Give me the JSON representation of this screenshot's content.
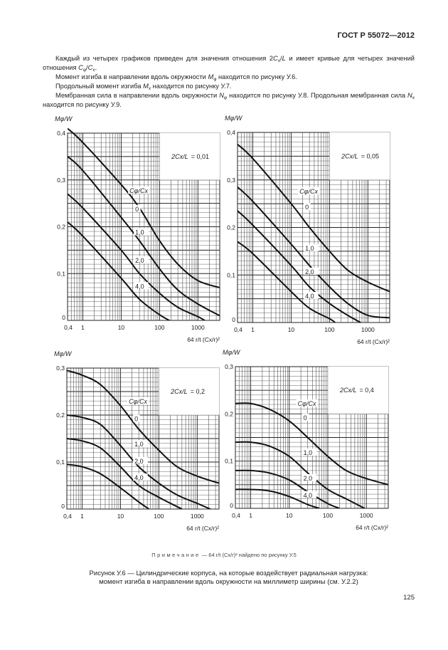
{
  "header": {
    "doc_id": "ГОСТ Р 55072—2012"
  },
  "paragraphs": {
    "p1": {
      "a": "Каждый из четырех графиков приведен для значения отношения 2",
      "b": "C",
      "b_sub": "x",
      "c": "/",
      "d": "L",
      "e": " и имеет кривые для четырех значений отношения ",
      "f": "C",
      "f_sub": "φ",
      "g": "/",
      "h": "C",
      "h_sub": "x",
      "i": "."
    },
    "p2": {
      "a": "Момент изгиба в направлении вдоль окружности ",
      "b": "M",
      "b_sub": "φ",
      "c": " находится по рисунку У.6."
    },
    "p3": {
      "a": "Продольный момент изгиба ",
      "b": "M",
      "b_sub": "x",
      "c": " находится по рисунку У.7."
    },
    "p4": {
      "a": "Мембранная сила в направлении вдоль окружности ",
      "b": "N",
      "b_sub": "φ",
      "c": " находится по рисунку У.8. Продольная мембранная сила ",
      "d": "N",
      "d_sub": "x",
      "e": " находится по рисунку У.9."
    }
  },
  "note": {
    "label": "Примечание",
    "dash": " — ",
    "formula": "64 r/t (Cx/r)²",
    "text": " найдено по рисунку У.5"
  },
  "caption": {
    "line1": "Рисунок У.6 — Цилиндрические корпуса, на которые воздействует радиальная нагрузка:",
    "line2": "момент изгиба в направлении вдоль окружности на миллиметр ширины (см. У.2.2)"
  },
  "page_number": "125",
  "chart_data": [
    {
      "type": "line",
      "param_label": "2Cx/L",
      "param_value": "= 0,01",
      "ylabel": "Mφ/W",
      "xlabel": "64 r/t (Cx/r)²",
      "xscale": "log",
      "xlim": [
        0.4,
        3700
      ],
      "ylim": [
        0,
        0.4
      ],
      "yticks": [
        0,
        0.1,
        0.2,
        0.3,
        0.4
      ],
      "ytick_labels": [
        "0",
        "0,1",
        "0,2",
        "0,3",
        "0,4"
      ],
      "xticks": [
        0.4,
        1,
        10,
        100,
        1000
      ],
      "xtick_labels": [
        "0,4",
        "1",
        "10",
        "100",
        "1000"
      ],
      "legend_title": "Cφ/Cx",
      "box_bottom": 0.3,
      "series": [
        {
          "name": "0",
          "points": [
            [
              0.4,
              0.41
            ],
            [
              1,
              0.38
            ],
            [
              10,
              0.29
            ],
            [
              30,
              0.24
            ],
            [
              100,
              0.17
            ],
            [
              300,
              0.12
            ],
            [
              1000,
              0.085
            ],
            [
              3700,
              0.07
            ]
          ]
        },
        {
          "name": "1,0",
          "points": [
            [
              0.4,
              0.35
            ],
            [
              1,
              0.32
            ],
            [
              10,
              0.22
            ],
            [
              30,
              0.17
            ],
            [
              100,
              0.11
            ],
            [
              300,
              0.065
            ],
            [
              1000,
              0.035
            ],
            [
              3700,
              0.01
            ]
          ]
        },
        {
          "name": "2,0",
          "points": [
            [
              0.4,
              0.27
            ],
            [
              1,
              0.24
            ],
            [
              10,
              0.15
            ],
            [
              30,
              0.1
            ],
            [
              100,
              0.058
            ],
            [
              300,
              0.028
            ],
            [
              1000,
              0.008
            ],
            [
              1500,
              0
            ]
          ]
        },
        {
          "name": "4,0",
          "points": [
            [
              0.4,
              0.21
            ],
            [
              1,
              0.18
            ],
            [
              10,
              0.09
            ],
            [
              30,
              0.045
            ],
            [
              100,
              0.012
            ],
            [
              180,
              0
            ]
          ]
        }
      ]
    },
    {
      "type": "line",
      "param_label": "2Cx/L",
      "param_value": "= 0,05",
      "ylabel": "Mφ/W",
      "xlabel": "64 r/t (Cx/r)²",
      "xscale": "log",
      "xlim": [
        0.4,
        3700
      ],
      "ylim": [
        0,
        0.4
      ],
      "yticks": [
        0,
        0.1,
        0.2,
        0.3,
        0.4
      ],
      "ytick_labels": [
        "0",
        "0,1",
        "0,2",
        "0,3",
        "0,4"
      ],
      "xticks": [
        0.4,
        1,
        10,
        100,
        1000
      ],
      "xtick_labels": [
        "0,4",
        "1",
        "10",
        "100",
        "1000"
      ],
      "legend_title": "Cφ/Cx",
      "box_bottom": 0.3,
      "series": [
        {
          "name": "0",
          "points": [
            [
              0.4,
              0.375
            ],
            [
              1,
              0.345
            ],
            [
              10,
              0.25
            ],
            [
              30,
              0.2
            ],
            [
              100,
              0.15
            ],
            [
              300,
              0.11
            ],
            [
              1000,
              0.085
            ],
            [
              3700,
              0.065
            ]
          ]
        },
        {
          "name": "1,0",
          "points": [
            [
              0.4,
              0.285
            ],
            [
              1,
              0.255
            ],
            [
              10,
              0.165
            ],
            [
              30,
              0.12
            ],
            [
              100,
              0.075
            ],
            [
              300,
              0.04
            ],
            [
              1000,
              0.015
            ],
            [
              3700,
              0.01
            ]
          ]
        },
        {
          "name": "2,0",
          "points": [
            [
              0.4,
              0.235
            ],
            [
              1,
              0.205
            ],
            [
              10,
              0.12
            ],
            [
              30,
              0.075
            ],
            [
              100,
              0.04
            ],
            [
              300,
              0.015
            ],
            [
              650,
              0
            ]
          ]
        },
        {
          "name": "4,0",
          "points": [
            [
              0.4,
              0.17
            ],
            [
              1,
              0.145
            ],
            [
              10,
              0.065
            ],
            [
              30,
              0.03
            ],
            [
              100,
              0.008
            ],
            [
              140,
              0
            ]
          ]
        }
      ]
    },
    {
      "type": "line",
      "param_label": "2Cx/L",
      "param_value": "= 0,2",
      "ylabel": "Mφ/W",
      "xlabel": "64 r/t (Cx/r)²",
      "xscale": "log",
      "xlim": [
        0.4,
        3700
      ],
      "ylim": [
        0,
        0.3
      ],
      "yticks": [
        0,
        0.1,
        0.2,
        0.3
      ],
      "ytick_labels": [
        "0",
        "0,1",
        "0,2",
        "0,3"
      ],
      "xticks": [
        0.4,
        1,
        10,
        100,
        1000
      ],
      "xtick_labels": [
        "0,4",
        "1",
        "10",
        "100",
        "1000"
      ],
      "legend_title": "Cφ/Cx",
      "box_bottom": 0.2,
      "series": [
        {
          "name": "0",
          "points": [
            [
              0.4,
              0.295
            ],
            [
              1,
              0.285
            ],
            [
              3,
              0.265
            ],
            [
              10,
              0.22
            ],
            [
              30,
              0.17
            ],
            [
              100,
              0.125
            ],
            [
              300,
              0.09
            ],
            [
              1000,
              0.07
            ],
            [
              3700,
              0.055
            ]
          ]
        },
        {
          "name": "1,0",
          "points": [
            [
              0.4,
              0.2
            ],
            [
              1,
              0.195
            ],
            [
              3,
              0.18
            ],
            [
              10,
              0.135
            ],
            [
              30,
              0.09
            ],
            [
              100,
              0.055
            ],
            [
              300,
              0.03
            ],
            [
              1000,
              0.012
            ],
            [
              2200,
              0
            ]
          ]
        },
        {
          "name": "2,0",
          "points": [
            [
              0.4,
              0.15
            ],
            [
              1,
              0.145
            ],
            [
              3,
              0.13
            ],
            [
              10,
              0.09
            ],
            [
              30,
              0.05
            ],
            [
              100,
              0.025
            ],
            [
              300,
              0.005
            ],
            [
              400,
              0
            ]
          ]
        },
        {
          "name": "4,0",
          "points": [
            [
              0.4,
              0.095
            ],
            [
              1,
              0.09
            ],
            [
              3,
              0.075
            ],
            [
              10,
              0.045
            ],
            [
              30,
              0.015
            ],
            [
              55,
              0
            ]
          ]
        }
      ]
    },
    {
      "type": "line",
      "param_label": "2Cx/L",
      "param_value": "= 0,4",
      "ylabel": "Mφ/W",
      "xlabel": "64 r/t (Cx/r)²",
      "xscale": "log",
      "xlim": [
        0.4,
        3700
      ],
      "ylim": [
        0,
        0.3
      ],
      "yticks": [
        0,
        0.1,
        0.2,
        0.3
      ],
      "ytick_labels": [
        "0",
        "0,1",
        "0,2",
        "0,3"
      ],
      "xticks": [
        0.4,
        1,
        10,
        100,
        1000
      ],
      "xtick_labels": [
        "0,4",
        "1",
        "10",
        "100",
        "1000"
      ],
      "legend_title": "Cφ/Cx",
      "box_bottom": 0.2,
      "series": [
        {
          "name": "0",
          "points": [
            [
              0.4,
              0.222
            ],
            [
              1,
              0.222
            ],
            [
              3,
              0.21
            ],
            [
              10,
              0.185
            ],
            [
              30,
              0.15
            ],
            [
              100,
              0.11
            ],
            [
              300,
              0.08
            ],
            [
              1000,
              0.063
            ],
            [
              3700,
              0.05
            ]
          ]
        },
        {
          "name": "1,0",
          "points": [
            [
              0.4,
              0.14
            ],
            [
              1,
              0.14
            ],
            [
              3,
              0.132
            ],
            [
              10,
              0.11
            ],
            [
              30,
              0.075
            ],
            [
              100,
              0.04
            ],
            [
              300,
              0.02
            ],
            [
              900,
              0
            ]
          ]
        },
        {
          "name": "2,0",
          "points": [
            [
              0.4,
              0.08
            ],
            [
              1,
              0.08
            ],
            [
              3,
              0.075
            ],
            [
              10,
              0.06
            ],
            [
              30,
              0.035
            ],
            [
              100,
              0.01
            ],
            [
              200,
              0
            ]
          ]
        },
        {
          "name": "4,0",
          "points": [
            [
              0.4,
              0.04
            ],
            [
              1,
              0.04
            ],
            [
              3,
              0.037
            ],
            [
              10,
              0.025
            ],
            [
              30,
              0.008
            ],
            [
              60,
              0
            ]
          ]
        }
      ]
    }
  ]
}
